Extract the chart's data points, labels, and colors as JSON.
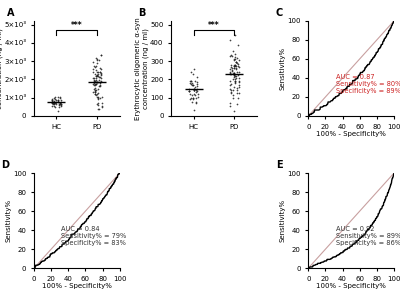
{
  "panel_label_fontsize": 7,
  "panel_label_fontweight": "bold",
  "scatter_A": {
    "HC_mean": 750,
    "HC_std": 180,
    "HC_n": 45,
    "PD_mean": 1800,
    "PD_std": 700,
    "PD_n": 85,
    "ylabel": "Erythrocytic total α-syn\nconcentration (ng / ml)",
    "yticks": [
      0,
      1000,
      2000,
      3000,
      4000,
      5000
    ],
    "ytick_labels": [
      "0",
      "1×10³",
      "2×10³",
      "3×10³",
      "4×10³",
      "5×10³"
    ],
    "ylim": [
      0,
      5200
    ],
    "significance": "***"
  },
  "scatter_B": {
    "HC_mean": 145,
    "HC_std": 45,
    "HC_n": 45,
    "PD_mean": 230,
    "PD_std": 85,
    "PD_n": 85,
    "ylabel": "Erythrocytic oligomeric α-syn\nconcentration (ng / ml)",
    "yticks": [
      0,
      100,
      200,
      300,
      400,
      500
    ],
    "ylim": [
      0,
      520
    ],
    "significance": "***"
  },
  "roc_C": {
    "auc": 0.87,
    "sensitivity": 80,
    "specificity": 89,
    "xlabel": "100% - Specificity%",
    "ylabel": "Sensitivity%",
    "annotation": "AUC = 0.87\nSensitivity% = 80%\nSpecificity% = 89%",
    "ann_color": "#cc2222"
  },
  "roc_D": {
    "auc": 0.84,
    "sensitivity": 79,
    "specificity": 83,
    "xlabel": "100% - Specificity%",
    "ylabel": "Sensitivity%",
    "annotation": "AUC = 0.84\nSensitivity% = 79%\nSpecificity% = 83%",
    "ann_color": "#333333"
  },
  "roc_E": {
    "auc": 0.92,
    "sensitivity": 89,
    "specificity": 86,
    "xlabel": "100% - Specificity%",
    "ylabel": "Sensitivity%",
    "annotation": "AUC = 0.92\nSensitivity% = 89%\nSpecificity% = 86%",
    "ann_color": "#333333"
  },
  "roc_color": "#000000",
  "diag_color": "#c8a0a0",
  "bg_color": "#ffffff",
  "tick_fontsize": 5,
  "axis_label_fontsize": 5,
  "annotation_fontsize": 4.8
}
